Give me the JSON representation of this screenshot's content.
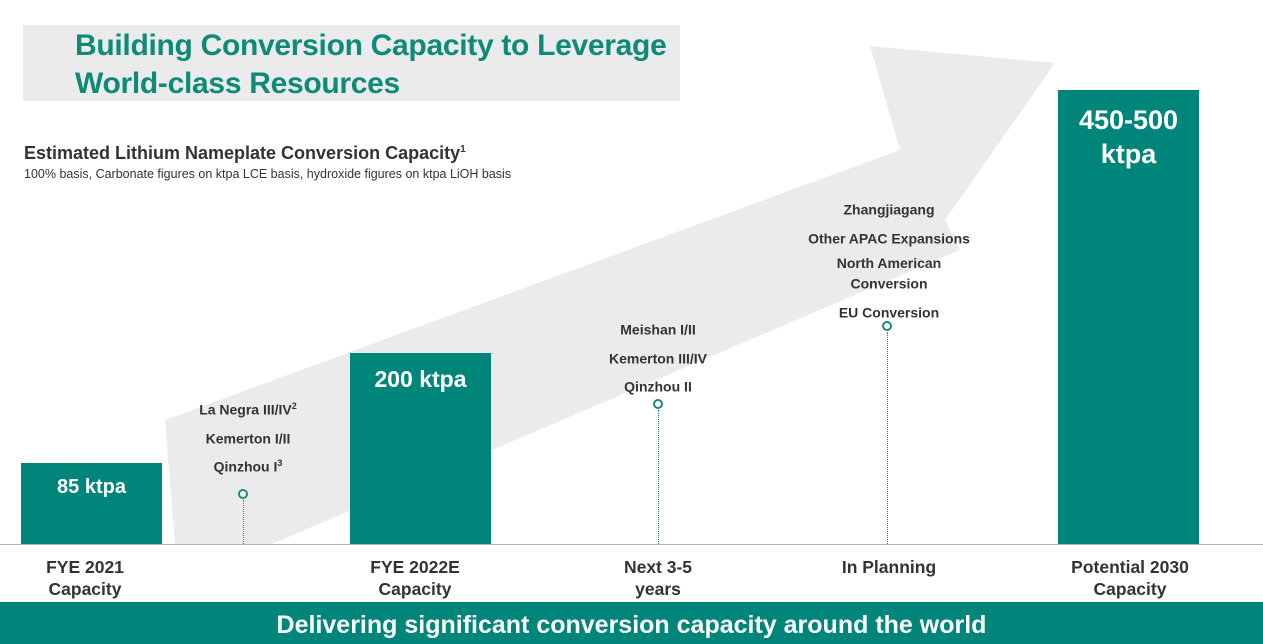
{
  "title": {
    "line1": "Building Conversion Capacity to Leverage",
    "line2": "World-class Resources"
  },
  "subtitle": {
    "text": "Estimated Lithium Nameplate Conversion Capacity",
    "footnote": "1"
  },
  "note": "100% basis, Carbonate figures on ktpa LCE basis, hydroxide figures on ktpa LiOH basis",
  "footer": "Delivering significant conversion capacity around the world",
  "colors": {
    "accent": "#00857a",
    "title": "#0e8a78",
    "arrow": "#ebebeb",
    "text": "#333333"
  },
  "chart_data": {
    "type": "bar",
    "categories": [
      {
        "line1": "FYE 2021",
        "line2": "Capacity"
      },
      {
        "line1": "",
        "line2": ""
      },
      {
        "line1": "FYE 2022E",
        "line2": "Capacity"
      },
      {
        "line1": "Next 3-5",
        "line2": "years"
      },
      {
        "line1": "In Planning",
        "line2": ""
      },
      {
        "line1": "Potential 2030",
        "line2": "Capacity"
      }
    ],
    "bars": [
      {
        "value": 85,
        "label": "85 ktpa"
      },
      {
        "value": 200,
        "label": "200 ktpa"
      },
      {
        "value": 475,
        "label_line1": "450-500",
        "label_line2": "ktpa"
      }
    ],
    "additions": [
      {
        "items": [
          {
            "text": "La Negra III/IV",
            "sup": "2"
          },
          {
            "text": "Kemerton I/II",
            "sup": ""
          },
          {
            "text": "Qinzhou I",
            "sup": "3"
          }
        ]
      },
      {
        "items": [
          {
            "text": "Meishan I/II",
            "sup": ""
          },
          {
            "text": "Kemerton III/IV",
            "sup": ""
          },
          {
            "text": "Qinzhou II",
            "sup": ""
          }
        ]
      },
      {
        "items": [
          {
            "text": "Zhangjiagang",
            "sup": ""
          },
          {
            "text": "Other APAC Expansions",
            "sup": ""
          },
          {
            "text": "North American Conversion",
            "sup": ""
          },
          {
            "text": "EU Conversion",
            "sup": ""
          }
        ]
      }
    ],
    "unit": "ktpa",
    "grid": false,
    "legend": "none"
  }
}
